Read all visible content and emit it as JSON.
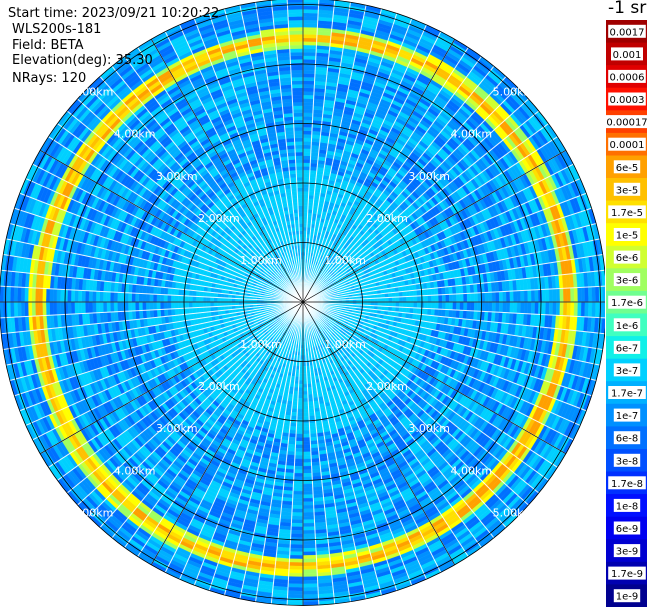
{
  "info": {
    "start_time": "Start time: 2023/09/21 10:20:22",
    "device": "WLS200s-181",
    "field": "Field: BETA",
    "elevation": "Elevation(deg): 35.30",
    "nrays": "NRays: 120"
  },
  "chart_data": {
    "type": "heatmap",
    "subtype": "polar-ppi",
    "field": "BETA",
    "nrays": 120,
    "elevation_deg": 35.3,
    "range_rings_km": [
      1.0,
      2.0,
      3.0,
      4.0,
      5.0
    ],
    "range_ring_labels": [
      "1.00km",
      "2.00km",
      "3.00km",
      "4.00km",
      "5.00km"
    ],
    "max_range_km": 5.1,
    "azimuth_lines_deg": [
      0,
      30,
      60,
      90,
      120,
      150,
      180,
      210,
      240,
      270,
      300,
      330
    ],
    "features": {
      "aerosol_ring_range_km": 4.45,
      "background_level": "1.7e-7",
      "inner_level": "3e-7"
    },
    "colorbar": {
      "title": "-1 sr",
      "levels": [
        "1e-9",
        "1.7e-9",
        "3e-9",
        "6e-9",
        "1e-8",
        "1.7e-8",
        "3e-8",
        "6e-8",
        "1e-7",
        "1.7e-7",
        "3e-7",
        "6e-7",
        "1e-6",
        "1.7e-6",
        "3e-6",
        "6e-6",
        "1e-5",
        "1.7e-5",
        "3e-5",
        "6e-5",
        "0.0001",
        "0.00017",
        "0.0003",
        "0.0006",
        "0.001",
        "0.0017"
      ],
      "colors": [
        "#00008f",
        "#0000b0",
        "#0000d0",
        "#0000f0",
        "#0010ff",
        "#0030ff",
        "#0050ff",
        "#0070ff",
        "#0090ff",
        "#00b0ff",
        "#00d0ff",
        "#10f0e8",
        "#40ffc0",
        "#70ff90",
        "#a0ff60",
        "#d0ff30",
        "#ffff00",
        "#ffe000",
        "#ffc000",
        "#ffa000",
        "#ff7000",
        "#ff4000",
        "#ff1000",
        "#e00000",
        "#c00000",
        "#a00000"
      ]
    }
  }
}
